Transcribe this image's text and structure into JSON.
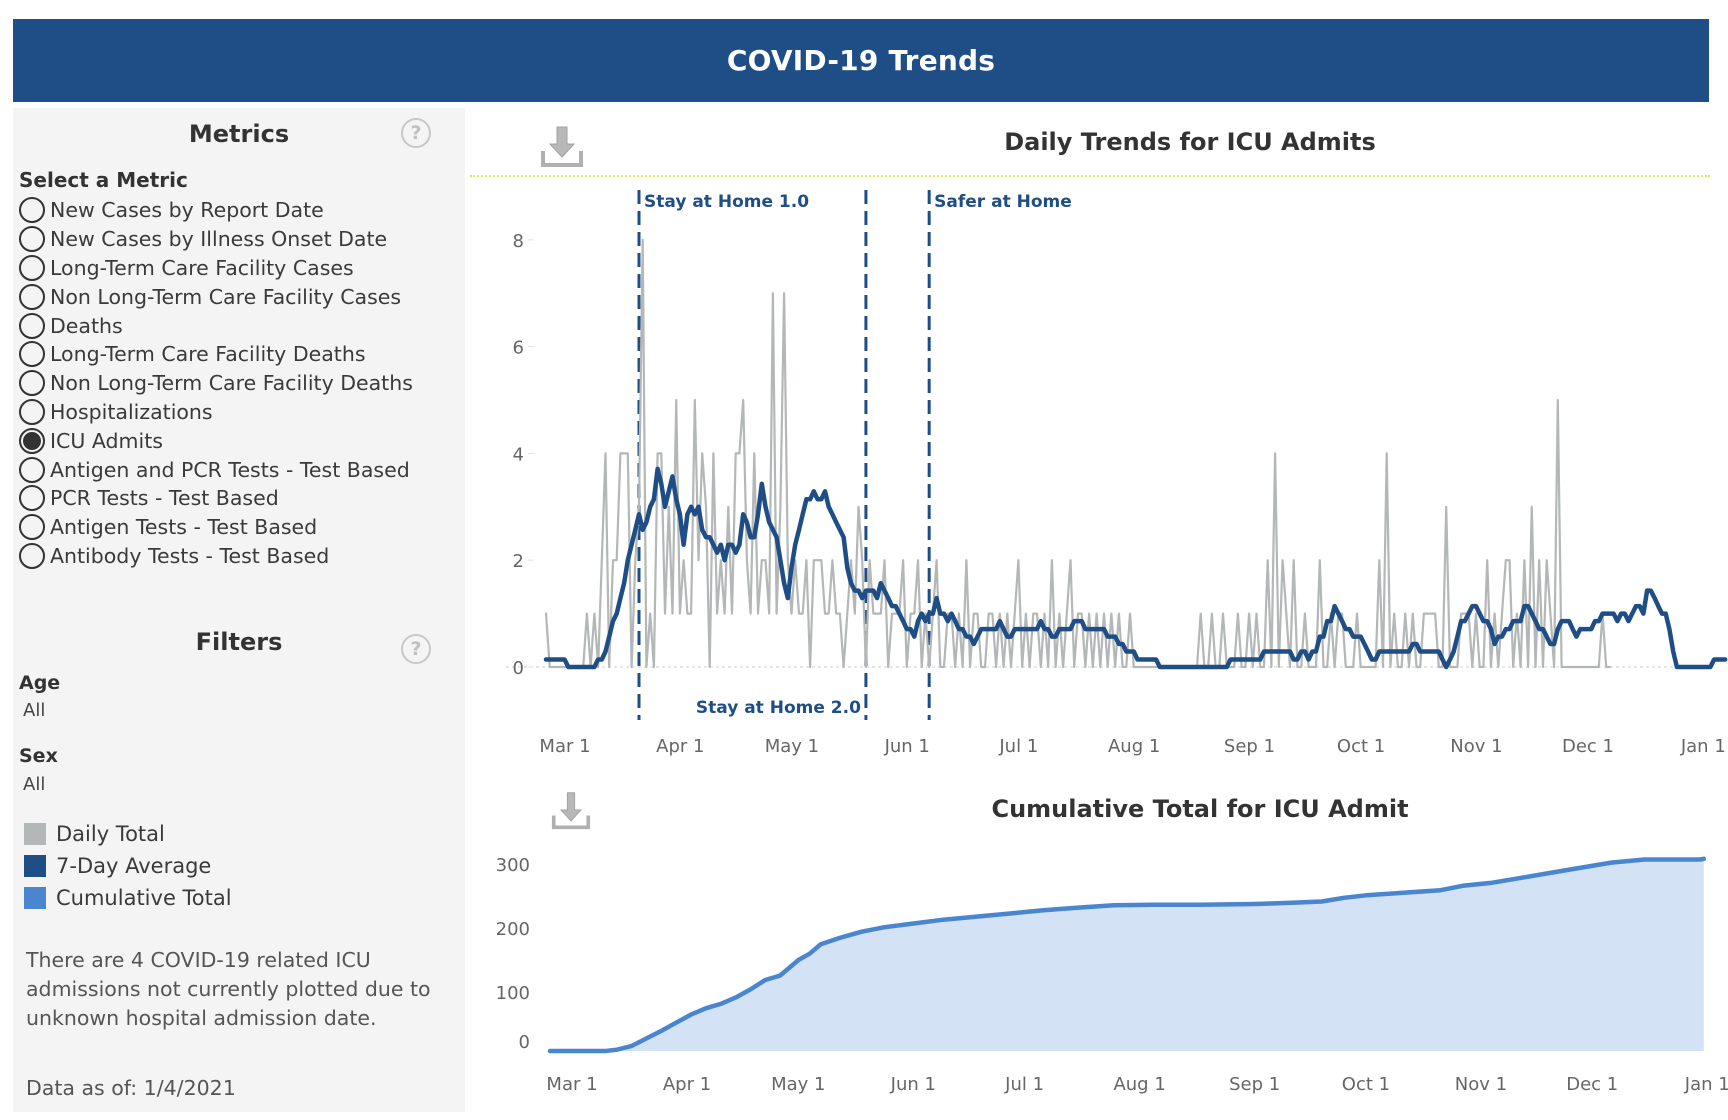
{
  "header": {
    "title": "COVID-19 Trends"
  },
  "sidebar": {
    "metrics_title": "Metrics",
    "select_label": "Select a Metric",
    "metrics": [
      {
        "label": "New Cases by Report Date",
        "selected": false
      },
      {
        "label": "New Cases by Illness Onset Date",
        "selected": false
      },
      {
        "label": "Long-Term Care Facility Cases",
        "selected": false
      },
      {
        "label": "Non Long-Term Care Facility Cases",
        "selected": false
      },
      {
        "label": "Deaths",
        "selected": false
      },
      {
        "label": "Long-Term Care Facility Deaths",
        "selected": false
      },
      {
        "label": "Non Long-Term Care Facility Deaths",
        "selected": false
      },
      {
        "label": "Hospitalizations",
        "selected": false
      },
      {
        "label": "ICU Admits",
        "selected": true
      },
      {
        "label": "Antigen and PCR Tests - Test Based",
        "selected": false
      },
      {
        "label": "PCR Tests - Test Based",
        "selected": false
      },
      {
        "label": "Antigen Tests - Test Based",
        "selected": false
      },
      {
        "label": "Antibody Tests - Test Based",
        "selected": false
      }
    ],
    "filters_title": "Filters",
    "filters": [
      {
        "label": "Age",
        "value": "All"
      },
      {
        "label": "Sex",
        "value": "All"
      }
    ],
    "legend": [
      {
        "label": "Daily Total",
        "color": "#b4b7b7"
      },
      {
        "label": "7-Day Average",
        "color": "#1f4e87"
      },
      {
        "label": "Cumulative Total",
        "color": "#4a86d0"
      }
    ],
    "note": "There are 4 COVID-19 related ICU admissions not currently plotted due to unknown hospital admission date.",
    "data_as_of": "Data as of: 1/4/2021",
    "help_glyph": "?"
  },
  "icons": {
    "download": "download-icon",
    "help": "help-icon"
  },
  "chart_data": [
    {
      "type": "line",
      "title": "Daily Trends for ICU Admits",
      "xlabel": "",
      "ylabel": "",
      "x_start": "2020-03-01",
      "x_ticks": [
        "Mar 1",
        "Apr 1",
        "May 1",
        "Jun 1",
        "Jul 1",
        "Aug 1",
        "Sep 1",
        "Oct 1",
        "Nov 1",
        "Dec 1",
        "Jan 1"
      ],
      "x_tick_days": [
        0,
        31,
        61,
        92,
        122,
        153,
        184,
        214,
        245,
        275,
        306
      ],
      "ylim": [
        0,
        8.3
      ],
      "y_ticks": [
        0,
        2,
        4,
        6,
        8
      ],
      "grid": false,
      "annotations": [
        {
          "label": "Stay at Home 1.0",
          "day": 25,
          "label_position": "top"
        },
        {
          "label": "Stay at Home 2.0",
          "day": 86,
          "label_position": "bottom"
        },
        {
          "label": "Safer at Home",
          "day": 103,
          "label_position": "top"
        }
      ],
      "series": [
        {
          "name": "Daily Total",
          "color": "#b4b7b7",
          "values": [
            1,
            0,
            0,
            0,
            0,
            0,
            0,
            0,
            0,
            0,
            0,
            1,
            0,
            1,
            0,
            2,
            4,
            0,
            2,
            2,
            4,
            4,
            4,
            0,
            2,
            3,
            8,
            0,
            1,
            0,
            4,
            4,
            1,
            3,
            1,
            5,
            1,
            2,
            1,
            1,
            5,
            2,
            4,
            3,
            0,
            4,
            1,
            2,
            1,
            3,
            1,
            4,
            4,
            5,
            2,
            1,
            4,
            1,
            2,
            2,
            1,
            7,
            1,
            3,
            7,
            2,
            1,
            2,
            1,
            1,
            2,
            0,
            2,
            2,
            2,
            1,
            1,
            2,
            1,
            1,
            0,
            1,
            2,
            1,
            3,
            2,
            0,
            2,
            1,
            1,
            1,
            2,
            0,
            1,
            1,
            1,
            2,
            0,
            1,
            1,
            2,
            0,
            1,
            0,
            1,
            2,
            0,
            0,
            1,
            1,
            0,
            1,
            0,
            2,
            0,
            1,
            1,
            0,
            0,
            1,
            1,
            0,
            1,
            0,
            1,
            0,
            1,
            2,
            0,
            1,
            0,
            1,
            1,
            0,
            1,
            0,
            2,
            0,
            1,
            0,
            1,
            2,
            0,
            1,
            1,
            0,
            1,
            0,
            1,
            0,
            1,
            0,
            1,
            0,
            1,
            0,
            0,
            1,
            0,
            0,
            0,
            0,
            0,
            0,
            0,
            0,
            0,
            0,
            0,
            0,
            0,
            0,
            0,
            0,
            0,
            0,
            1,
            0,
            0,
            1,
            0,
            0,
            1,
            0,
            0,
            0,
            1,
            0,
            0,
            1,
            0,
            1,
            0,
            0,
            2,
            0,
            4,
            0,
            2,
            1,
            0,
            2,
            0,
            0,
            1,
            0,
            0,
            0,
            2,
            0,
            0,
            1,
            0,
            1,
            1,
            0,
            0,
            0,
            1,
            0,
            0,
            0,
            0,
            0,
            2,
            0,
            4,
            0,
            1,
            0,
            0,
            1,
            0,
            1,
            0,
            0,
            1,
            1,
            1,
            1,
            0,
            0,
            3,
            0,
            0,
            0,
            1,
            1,
            1,
            0,
            1,
            0,
            0,
            2,
            0,
            1,
            0,
            1,
            2,
            2,
            0,
            1,
            0,
            2,
            0,
            3,
            0,
            2,
            0,
            2,
            1,
            0,
            5,
            0,
            0,
            0,
            0,
            0,
            0,
            0,
            0,
            0,
            0,
            0,
            1,
            0,
            0
          ]
        },
        {
          "name": "7-Day Average",
          "color": "#1f4e87",
          "values": [
            0.14,
            0.14,
            0.14,
            0.14,
            0.14,
            0.14,
            0,
            0,
            0,
            0,
            0,
            0,
            0,
            0,
            0.14,
            0.14,
            0.29,
            0.57,
            0.86,
            1,
            1.29,
            1.57,
            2,
            2.29,
            2.57,
            2.86,
            2.57,
            2.71,
            3,
            3.14,
            3.71,
            3.43,
            3,
            3.29,
            3.57,
            3.14,
            2.86,
            2.29,
            2.86,
            3,
            2.86,
            3,
            2.57,
            2.43,
            2.43,
            2.29,
            2.14,
            2.29,
            2,
            2.29,
            2.29,
            2.14,
            2.29,
            2.86,
            2.71,
            2.43,
            2.43,
            2.86,
            3.43,
            3,
            2.71,
            2.57,
            2.43,
            2,
            1.57,
            1.29,
            1.86,
            2.29,
            2.57,
            2.86,
            3.14,
            3.14,
            3.29,
            3.14,
            3.14,
            3.29,
            3,
            2.86,
            2.71,
            2.57,
            2.43,
            1.86,
            1.57,
            1.43,
            1.43,
            1.29,
            1.43,
            1.43,
            1.43,
            1.29,
            1.57,
            1.43,
            1.29,
            1.14,
            1.14,
            1,
            0.86,
            0.71,
            0.71,
            0.57,
            0.86,
            1,
            0.86,
            1,
            1,
            1.29,
            1,
            1,
            0.86,
            1,
            0.86,
            0.71,
            0.71,
            0.57,
            0.57,
            0.43,
            0.57,
            0.71,
            0.71,
            0.71,
            0.71,
            0.71,
            0.86,
            0.71,
            0.57,
            0.57,
            0.71,
            0.71,
            0.71,
            0.71,
            0.71,
            0.71,
            0.71,
            0.86,
            0.71,
            0.71,
            0.57,
            0.57,
            0.71,
            0.71,
            0.71,
            0.71,
            0.86,
            0.86,
            0.86,
            0.71,
            0.71,
            0.71,
            0.71,
            0.71,
            0.71,
            0.57,
            0.57,
            0.57,
            0.43,
            0.43,
            0.29,
            0.29,
            0.29,
            0.14,
            0.14,
            0.14,
            0.14,
            0.14,
            0.14,
            0,
            0,
            0,
            0,
            0,
            0,
            0,
            0,
            0,
            0,
            0,
            0,
            0,
            0,
            0,
            0,
            0,
            0,
            0,
            0.14,
            0.14,
            0.14,
            0.14,
            0.14,
            0.14,
            0.14,
            0.14,
            0.14,
            0.29,
            0.29,
            0.29,
            0.29,
            0.29,
            0.29,
            0.29,
            0.29,
            0.14,
            0.14,
            0.29,
            0.29,
            0.14,
            0.29,
            0.29,
            0.57,
            0.57,
            0.86,
            0.86,
            1.14,
            1,
            0.86,
            0.71,
            0.71,
            0.57,
            0.57,
            0.57,
            0.43,
            0.29,
            0.14,
            0.14,
            0.29,
            0.29,
            0.29,
            0.29,
            0.29,
            0.29,
            0.29,
            0.29,
            0.29,
            0.43,
            0.43,
            0.29,
            0.29,
            0.29,
            0.29,
            0.29,
            0.29,
            0.14,
            0,
            0.14,
            0.29,
            0.57,
            0.86,
            0.86,
            1,
            1.14,
            1.14,
            1,
            0.86,
            0.86,
            0.71,
            0.43,
            0.57,
            0.57,
            0.71,
            0.71,
            0.86,
            0.86,
            0.86,
            1.14,
            1.14,
            1,
            0.86,
            0.71,
            0.71,
            0.57,
            0.43,
            0.43,
            0.71,
            0.86,
            0.86,
            0.86,
            0.71,
            0.57,
            0.71,
            0.71,
            0.71,
            0.71,
            0.86,
            0.86,
            1,
            1,
            1,
            1,
            0.86,
            1,
            1,
            0.86,
            1,
            1.14,
            1.14,
            1,
            1.43,
            1.43,
            1.29,
            1.14,
            1,
            1,
            0.71,
            0.29,
            0,
            0,
            0,
            0,
            0,
            0,
            0,
            0,
            0,
            0,
            0.14,
            0.14,
            0.14,
            0.14
          ]
        }
      ]
    },
    {
      "type": "area",
      "title": "Cumulative Total for ICU Admit",
      "xlabel": "",
      "ylabel": "",
      "x_start": "2020-03-01",
      "x_ticks": [
        "Mar 1",
        "Apr 1",
        "May 1",
        "Jun 1",
        "Jul 1",
        "Aug 1",
        "Sep 1",
        "Oct 1",
        "Nov 1",
        "Dec 1",
        "Jan 1"
      ],
      "x_tick_days": [
        0,
        31,
        61,
        92,
        122,
        153,
        184,
        214,
        245,
        275,
        306
      ],
      "ylim": [
        0,
        320
      ],
      "y_ticks": [
        0,
        100,
        200,
        300
      ],
      "grid": false,
      "series": [
        {
          "name": "Cumulative Total",
          "color": "#4a86d0",
          "points": [
            [
              0,
              0
            ],
            [
              15,
              0
            ],
            [
              18,
              2
            ],
            [
              22,
              8
            ],
            [
              26,
              20
            ],
            [
              30,
              32
            ],
            [
              34,
              45
            ],
            [
              38,
              58
            ],
            [
              42,
              68
            ],
            [
              46,
              75
            ],
            [
              50,
              85
            ],
            [
              54,
              98
            ],
            [
              58,
              113
            ],
            [
              62,
              120
            ],
            [
              64,
              130
            ],
            [
              67,
              145
            ],
            [
              70,
              155
            ],
            [
              73,
              170
            ],
            [
              78,
              180
            ],
            [
              84,
              190
            ],
            [
              90,
              197
            ],
            [
              98,
              203
            ],
            [
              106,
              209
            ],
            [
              115,
              214
            ],
            [
              124,
              219
            ],
            [
              133,
              224
            ],
            [
              142,
              228
            ],
            [
              152,
              232
            ],
            [
              162,
              233
            ],
            [
              175,
              233
            ],
            [
              190,
              234
            ],
            [
              200,
              236
            ],
            [
              208,
              238
            ],
            [
              214,
              244
            ],
            [
              220,
              248
            ],
            [
              230,
              252
            ],
            [
              240,
              256
            ],
            [
              246,
              263
            ],
            [
              254,
              268
            ],
            [
              262,
              276
            ],
            [
              270,
              284
            ],
            [
              278,
              292
            ],
            [
              286,
              300
            ],
            [
              295,
              305
            ],
            [
              310,
              305
            ],
            [
              311,
              306
            ]
          ]
        }
      ]
    }
  ]
}
